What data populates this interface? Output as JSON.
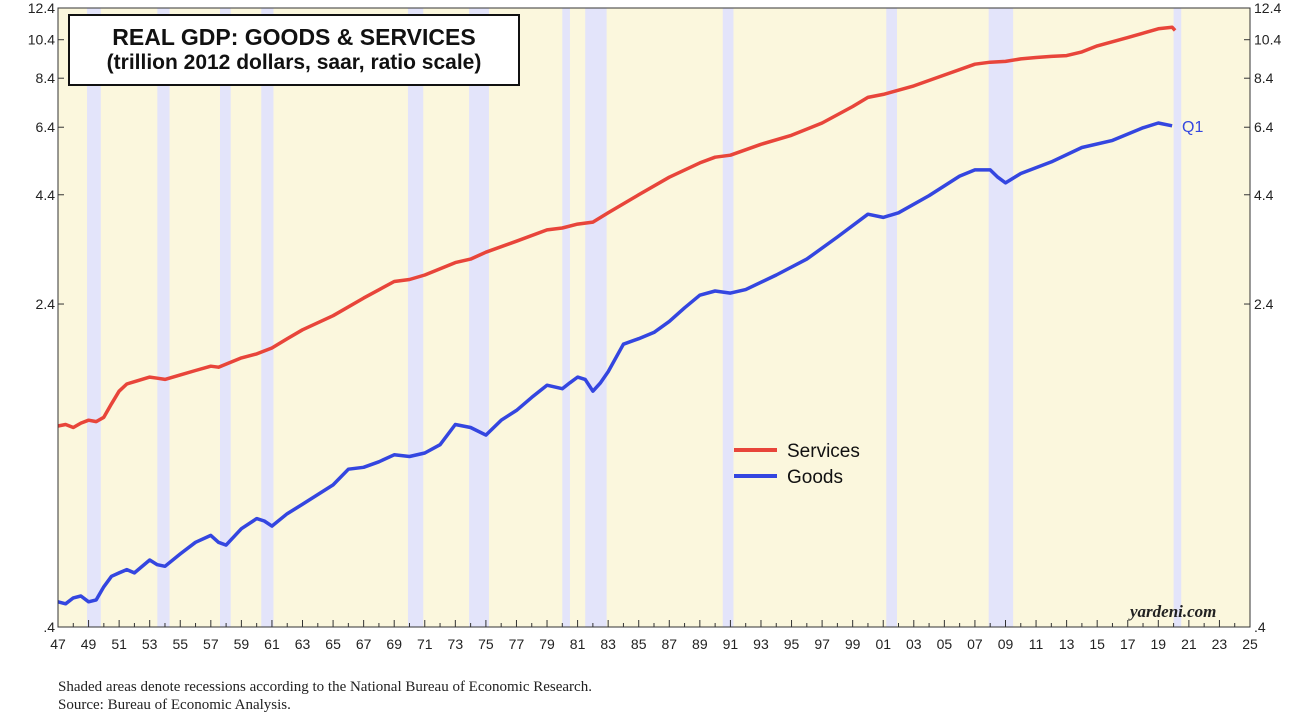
{
  "colors": {
    "background": "#fbf7dd",
    "recession": "#e3e4fa",
    "services": "#e8453a",
    "goods": "#3446e0",
    "axis": "#333333",
    "label_q1": "#3446e0"
  },
  "chart_data": {
    "type": "line",
    "title": "REAL GDP: GOODS & SERVICES",
    "subtitle": "(trillion 2012 dollars, saar, ratio scale)",
    "xlabel": "",
    "ylabel": "",
    "scale": "log",
    "xlim": [
      1947,
      2025
    ],
    "ylim": [
      0.4,
      12.4
    ],
    "y_ticks": [
      {
        "value": 0.4,
        "label": ".4"
      },
      {
        "value": 2.4,
        "label": "2.4"
      },
      {
        "value": 4.4,
        "label": "4.4"
      },
      {
        "value": 6.4,
        "label": "6.4"
      },
      {
        "value": 8.4,
        "label": "8.4"
      },
      {
        "value": 10.4,
        "label": "10.4"
      },
      {
        "value": 12.4,
        "label": "12.4"
      }
    ],
    "x_ticks": [
      "47",
      "49",
      "51",
      "53",
      "55",
      "57",
      "59",
      "61",
      "63",
      "65",
      "67",
      "69",
      "71",
      "73",
      "75",
      "77",
      "79",
      "81",
      "83",
      "85",
      "87",
      "89",
      "91",
      "93",
      "95",
      "97",
      "99",
      "01",
      "03",
      "05",
      "07",
      "09",
      "11",
      "13",
      "15",
      "17",
      "19",
      "21",
      "23",
      "25"
    ],
    "recessions": [
      [
        1948.9,
        1949.8
      ],
      [
        1953.5,
        1954.3
      ],
      [
        1957.6,
        1958.3
      ],
      [
        1960.3,
        1961.1
      ],
      [
        1969.9,
        1970.9
      ],
      [
        1973.9,
        1975.2
      ],
      [
        1980.0,
        1980.5
      ],
      [
        1981.5,
        1982.9
      ],
      [
        1990.5,
        1991.2
      ],
      [
        2001.2,
        2001.9
      ],
      [
        2007.9,
        2009.5
      ],
      [
        2020.0,
        2020.5
      ]
    ],
    "series": [
      {
        "name": "Services",
        "color": "#e8453a",
        "x": [
          1947,
          1947.5,
          1948,
          1948.5,
          1949,
          1949.5,
          1950,
          1950.5,
          1951,
          1951.5,
          1952,
          1953,
          1953.5,
          1954,
          1955,
          1956,
          1957,
          1957.5,
          1958,
          1959,
          1960,
          1961,
          1962,
          1963,
          1965,
          1967,
          1969,
          1970,
          1971,
          1973,
          1974,
          1975,
          1977,
          1979,
          1980,
          1981,
          1982,
          1983,
          1985,
          1987,
          1989,
          1990,
          1991,
          1993,
          1995,
          1997,
          1999,
          2000,
          2001,
          2003,
          2005,
          2007,
          2008,
          2009,
          2010,
          2011,
          2012,
          2013,
          2014,
          2015,
          2017,
          2019,
          2019.9,
          2020.1
        ],
        "values": [
          1.22,
          1.23,
          1.21,
          1.24,
          1.26,
          1.25,
          1.28,
          1.38,
          1.48,
          1.54,
          1.56,
          1.6,
          1.59,
          1.58,
          1.62,
          1.66,
          1.7,
          1.69,
          1.72,
          1.78,
          1.82,
          1.88,
          1.98,
          2.08,
          2.25,
          2.48,
          2.72,
          2.75,
          2.82,
          3.02,
          3.08,
          3.2,
          3.4,
          3.62,
          3.66,
          3.74,
          3.78,
          3.98,
          4.4,
          4.85,
          5.25,
          5.42,
          5.48,
          5.82,
          6.12,
          6.55,
          7.18,
          7.55,
          7.68,
          8.05,
          8.55,
          9.08,
          9.18,
          9.22,
          9.35,
          9.42,
          9.48,
          9.52,
          9.72,
          10.05,
          10.52,
          11.05,
          11.15,
          10.95
        ]
      },
      {
        "name": "Goods",
        "color": "#3446e0",
        "x": [
          1947,
          1947.5,
          1948,
          1948.5,
          1949,
          1949.5,
          1950,
          1950.5,
          1951,
          1951.5,
          1952,
          1953,
          1953.5,
          1954,
          1955,
          1956,
          1957,
          1957.5,
          1958,
          1959,
          1960,
          1960.5,
          1961,
          1962,
          1963,
          1965,
          1966,
          1967,
          1968,
          1969,
          1970,
          1971,
          1972,
          1973,
          1974,
          1975,
          1976,
          1977,
          1978,
          1979,
          1980,
          1980.5,
          1981,
          1981.5,
          1982,
          1982.5,
          1983,
          1984,
          1985,
          1986,
          1987,
          1988,
          1989,
          1990,
          1991,
          1992,
          1994,
          1996,
          1998,
          2000,
          2001,
          2002,
          2004,
          2006,
          2007,
          2008,
          2008.5,
          2009,
          2010,
          2012,
          2014,
          2016,
          2018,
          2019,
          2019.9
        ],
        "values": [
          0.46,
          0.455,
          0.47,
          0.475,
          0.46,
          0.465,
          0.5,
          0.53,
          0.54,
          0.55,
          0.54,
          0.58,
          0.565,
          0.56,
          0.6,
          0.64,
          0.665,
          0.64,
          0.63,
          0.69,
          0.73,
          0.72,
          0.7,
          0.75,
          0.79,
          0.88,
          0.96,
          0.97,
          1.0,
          1.04,
          1.03,
          1.05,
          1.1,
          1.23,
          1.21,
          1.16,
          1.26,
          1.33,
          1.43,
          1.53,
          1.5,
          1.55,
          1.6,
          1.58,
          1.48,
          1.55,
          1.65,
          1.92,
          1.98,
          2.05,
          2.18,
          2.35,
          2.52,
          2.58,
          2.55,
          2.6,
          2.82,
          3.08,
          3.48,
          3.95,
          3.88,
          3.98,
          4.38,
          4.88,
          5.05,
          5.05,
          4.85,
          4.7,
          4.95,
          5.28,
          5.72,
          5.95,
          6.38,
          6.55,
          6.45
        ]
      }
    ],
    "legend": {
      "position": "center-right",
      "entries": [
        "Services",
        "Goods"
      ]
    },
    "annotations": [
      {
        "text": "Q1",
        "series": "Goods"
      }
    ]
  },
  "footnotes": {
    "line1": "Shaded areas denote recessions according to the National Bureau of Economic Research.",
    "line2": "Source: Bureau of Economic Analysis."
  },
  "watermark": "yardeni.com"
}
